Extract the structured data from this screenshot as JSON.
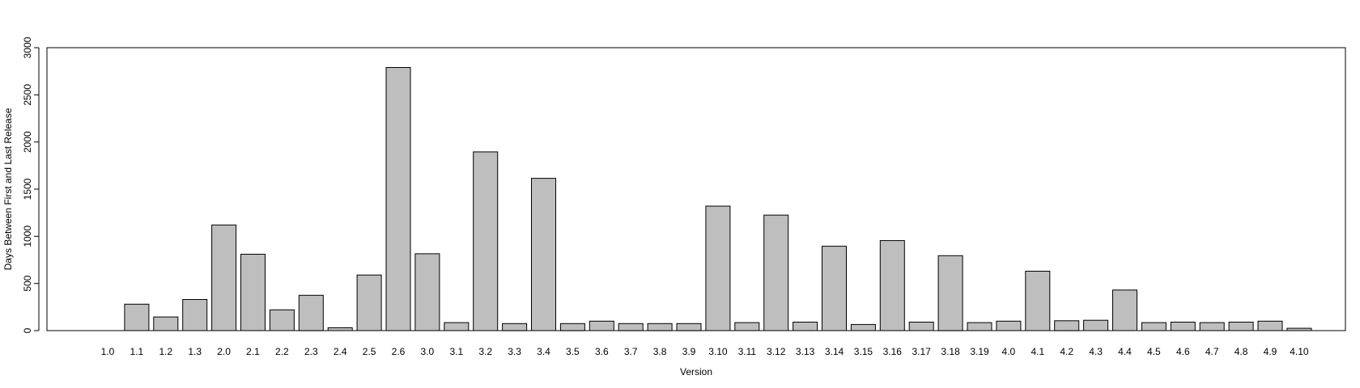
{
  "chart_data": {
    "type": "bar",
    "title": "",
    "xlabel": "Version",
    "ylabel": "Days Between First and Last Release",
    "ylim": [
      0,
      3000
    ],
    "yticks": [
      0,
      500,
      1000,
      1500,
      2000,
      2500,
      3000
    ],
    "grid": false,
    "legend": "none",
    "bar_color": "#bebebe",
    "categories": [
      "1.0",
      "1.1",
      "1.2",
      "1.3",
      "2.0",
      "2.1",
      "2.2",
      "2.3",
      "2.4",
      "2.5",
      "2.6",
      "3.0",
      "3.1",
      "3.2",
      "3.3",
      "3.4",
      "3.5",
      "3.6",
      "3.7",
      "3.8",
      "3.9",
      "3.10",
      "3.11",
      "3.12",
      "3.13",
      "3.14",
      "3.15",
      "3.16",
      "3.17",
      "3.18",
      "3.19",
      "4.0",
      "4.1",
      "4.2",
      "4.3",
      "4.4",
      "4.5",
      "4.6",
      "4.7",
      "4.8",
      "4.9",
      "4.10"
    ],
    "values": [
      0,
      280,
      145,
      330,
      1120,
      810,
      220,
      375,
      30,
      590,
      2790,
      815,
      85,
      1895,
      75,
      1615,
      75,
      100,
      75,
      75,
      75,
      1320,
      85,
      1225,
      90,
      895,
      65,
      955,
      90,
      795,
      85,
      100,
      630,
      105,
      110,
      430,
      85,
      90,
      85,
      90,
      100,
      25
    ]
  }
}
